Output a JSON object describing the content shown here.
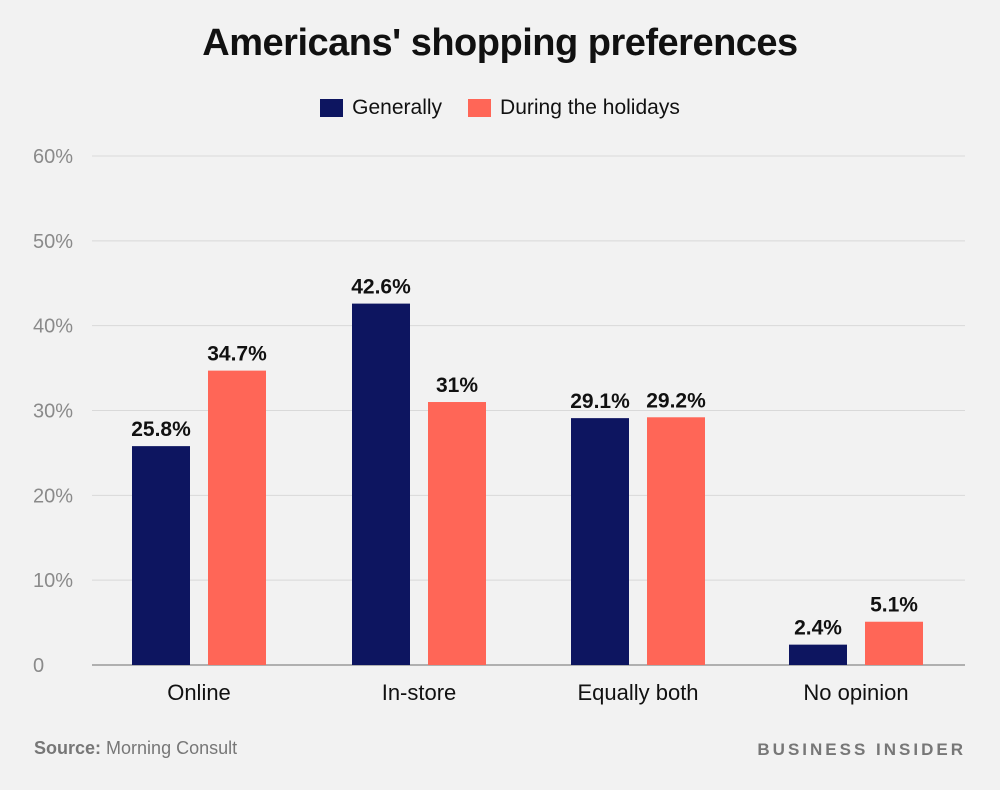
{
  "chart_data": {
    "type": "bar",
    "title": "Americans' shopping preferences",
    "categories": [
      "Online",
      "In-store",
      "Equally both",
      "No opinion"
    ],
    "series": [
      {
        "name": "Generally",
        "color": "#0d1560",
        "values": [
          25.8,
          42.6,
          29.1,
          2.4
        ],
        "labels": [
          "25.8%",
          "42.6%",
          "29.1%",
          "2.4%"
        ]
      },
      {
        "name": "During the holidays",
        "color": "#ff6657",
        "values": [
          34.7,
          31,
          29.2,
          5.1
        ],
        "labels": [
          "34.7%",
          "31%",
          "29.2%",
          "5.1%"
        ]
      }
    ],
    "ylim": [
      0,
      60
    ],
    "yticks": [
      0,
      10,
      20,
      30,
      40,
      50,
      60
    ],
    "ytick_labels": [
      "0",
      "10%",
      "20%",
      "30%",
      "40%",
      "50%",
      "60%"
    ],
    "xlabel": "",
    "ylabel": "",
    "grid": true,
    "legend_position": "top-center"
  },
  "footer": {
    "source_label": "Source:",
    "source_text": "Morning Consult",
    "brand": "BUSINESS INSIDER"
  }
}
